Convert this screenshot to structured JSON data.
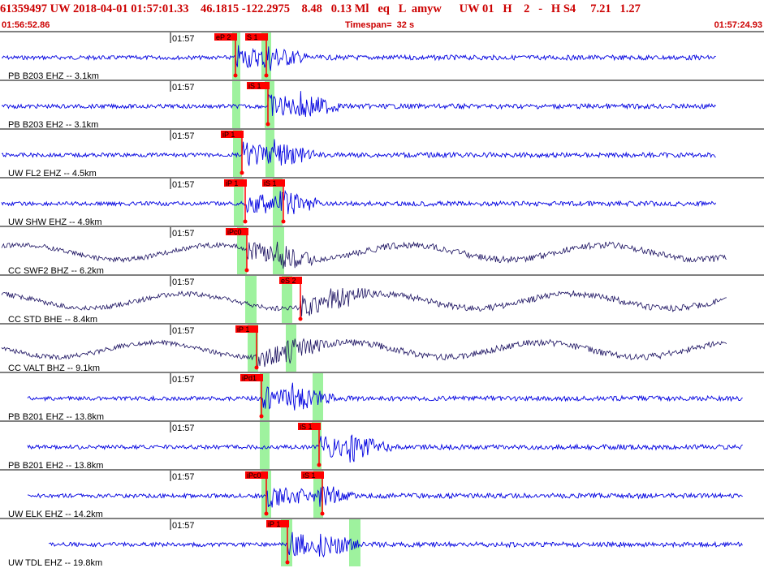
{
  "header": {
    "event_line": "61359497 UW 2018-04-01 01:57:01.33    46.1815 -122.2975    8.48   0.13 Ml   eq   L  amyw      UW 01   H    2   -   H S4     7.21   1.27",
    "start_time": "01:56:52.86",
    "timespan": "Timespan=  32 s",
    "end_time": "01:57:24.93"
  },
  "colors": {
    "header_text": "#cc0000",
    "trace_blue": "#0000e0",
    "trace_dark": "#1a1060",
    "pick_red": "#ff0000",
    "window_green": "#9ef29e",
    "divider": "#000000"
  },
  "panels": [
    {
      "label": "PB B203 EHZ -- 3.1km",
      "time_tick": "01:57",
      "trace_color": "blue",
      "picks": [
        {
          "label": "eP 2",
          "t": 290
        },
        {
          "label": "S 1",
          "t": 328
        }
      ],
      "windows": [
        {
          "start": 286,
          "end": 296
        },
        {
          "start": 322,
          "end": 334
        }
      ]
    },
    {
      "label": "PB B203 EH2 -- 3.1km",
      "time_tick": "01:57",
      "trace_color": "blue",
      "picks": [
        {
          "label": "iS 1",
          "t": 330
        }
      ],
      "windows": [
        {
          "start": 286,
          "end": 296
        },
        {
          "start": 326,
          "end": 338
        }
      ]
    },
    {
      "label": "UW FL2 EHZ -- 4.5km",
      "time_tick": "01:57",
      "trace_color": "blue",
      "picks": [
        {
          "label": "iP 1",
          "t": 298
        }
      ],
      "windows": [
        {
          "start": 287,
          "end": 298
        },
        {
          "start": 327,
          "end": 338
        }
      ]
    },
    {
      "label": "UW SHW EHZ -- 4.9km",
      "time_tick": "01:57",
      "trace_color": "blue",
      "picks": [
        {
          "label": "iP 1",
          "t": 302
        },
        {
          "label": "iS 1",
          "t": 349
        }
      ],
      "windows": [
        {
          "start": 288,
          "end": 300
        },
        {
          "start": 336,
          "end": 348
        }
      ]
    },
    {
      "label": "CC SWF2 BHZ -- 6.2km",
      "time_tick": "01:57",
      "trace_color": "dark",
      "picks": [
        {
          "label": "iPc0",
          "t": 304
        }
      ],
      "windows": [
        {
          "start": 292,
          "end": 304
        },
        {
          "start": 336,
          "end": 350
        }
      ]
    },
    {
      "label": "CC STD BHE -- 8.4km",
      "time_tick": "01:57",
      "trace_color": "dark",
      "picks": [
        {
          "label": "eS 2",
          "t": 370
        }
      ],
      "windows": [
        {
          "start": 302,
          "end": 316
        },
        {
          "start": 347,
          "end": 360
        }
      ]
    },
    {
      "label": "CC VALT BHZ -- 9.1km",
      "time_tick": "01:57",
      "trace_color": "dark",
      "picks": [
        {
          "label": "iP 1",
          "t": 316
        }
      ],
      "windows": [
        {
          "start": 305,
          "end": 318
        },
        {
          "start": 352,
          "end": 365
        }
      ]
    },
    {
      "label": "PB B201 EHZ -- 13.8km",
      "time_tick": "01:57",
      "trace_color": "blue",
      "picks": [
        {
          "label": "iPd1",
          "t": 322
        }
      ],
      "windows": [
        {
          "start": 320,
          "end": 332
        },
        {
          "start": 385,
          "end": 398
        }
      ]
    },
    {
      "label": "PB B201 EH2 -- 13.8km",
      "time_tick": "01:57",
      "trace_color": "blue",
      "picks": [
        {
          "label": "iS 1",
          "t": 393
        }
      ],
      "windows": [
        {
          "start": 320,
          "end": 332
        },
        {
          "start": 384,
          "end": 396
        }
      ]
    },
    {
      "label": "UW ELK EHZ -- 14.2km",
      "time_tick": "01:57",
      "trace_color": "blue",
      "picks": [
        {
          "label": "iPc0",
          "t": 328
        },
        {
          "label": "iS 1",
          "t": 397
        }
      ],
      "windows": [
        {
          "start": 322,
          "end": 334
        },
        {
          "start": 386,
          "end": 398
        }
      ]
    },
    {
      "label": "UW TDL EHZ -- 19.8km",
      "time_tick": "01:57",
      "trace_color": "blue",
      "picks": [
        {
          "label": "iP 1",
          "t": 354
        }
      ],
      "windows": [
        {
          "start": 346,
          "end": 360
        },
        {
          "start": 430,
          "end": 444
        }
      ]
    }
  ]
}
